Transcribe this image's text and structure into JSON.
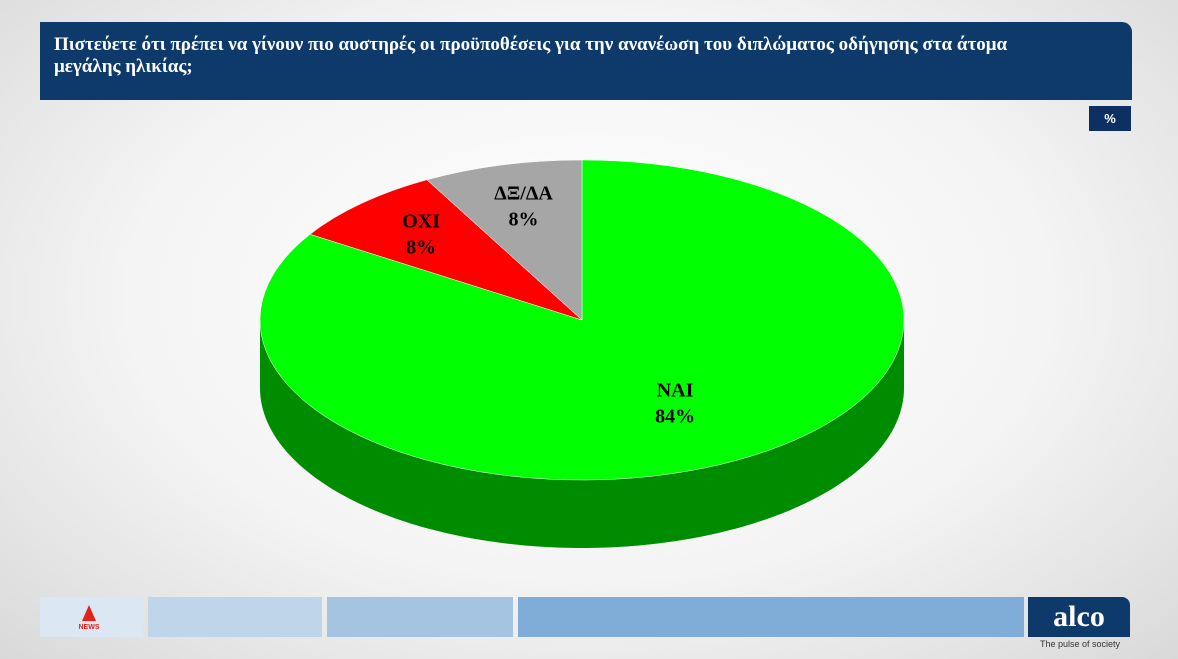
{
  "chart_data": {
    "type": "pie",
    "title": "Πιστεύετε ότι πρέπει να γίνουν πιο αυστηρές οι προϋποθέσεις για την ανανέωση του διπλώματος οδήγησης στα άτομα μεγάλης ηλικίας;",
    "unit_label": "%",
    "categories": [
      "ΝΑΙ",
      "ΟΧΙ",
      "ΔΞ/ΔΑ"
    ],
    "values": [
      84,
      8,
      8
    ],
    "value_labels": [
      "84%",
      "8%",
      "8%"
    ],
    "colors": [
      "#00ff00",
      "#ff0000",
      "#a6a6a6"
    ]
  },
  "footer": {
    "logo_text": "NEWS",
    "brand": "alco",
    "tagline": "The pulse of society"
  }
}
